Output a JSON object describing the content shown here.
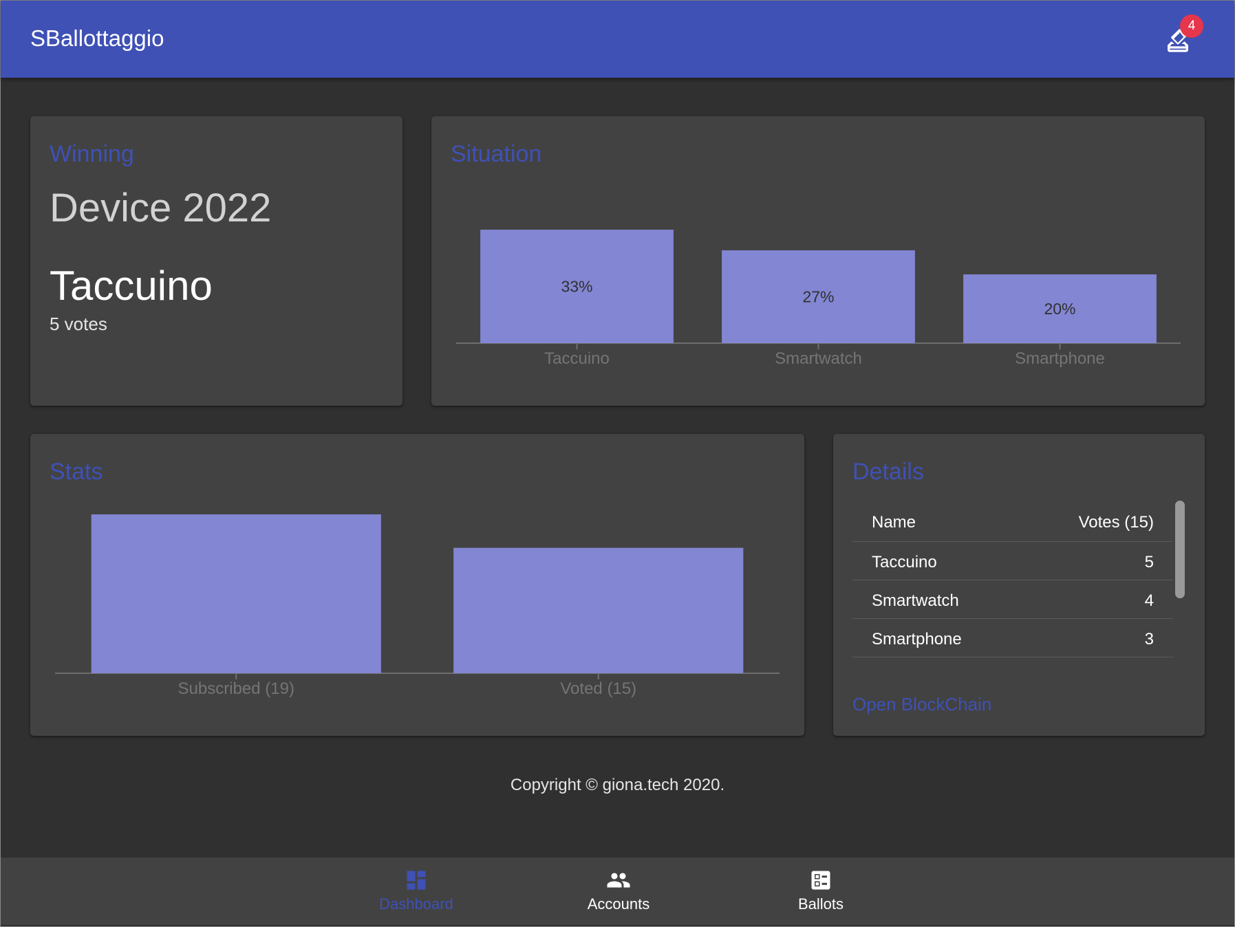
{
  "app": {
    "title": "SBallottaggio",
    "badge_count": "4",
    "accent_color": "#3f51b5",
    "badge_color": "#e5364c",
    "bar_color": "#8386d2",
    "vote_icon": "how-to-vote-icon"
  },
  "winning": {
    "title": "Winning",
    "ballot_name": "Device 2022",
    "winner": "Taccuino",
    "votes_text": "5 votes"
  },
  "situation": {
    "title": "Situation",
    "chart_data": {
      "type": "bar",
      "categories": [
        "Taccuino",
        "Smartwatch",
        "Smartphone"
      ],
      "values": [
        33,
        27,
        20
      ],
      "value_labels": [
        "33%",
        "27%",
        "20%"
      ],
      "unit": "%",
      "ylim": [
        0,
        60
      ],
      "grid": false,
      "legend": "none"
    }
  },
  "stats": {
    "title": "Stats",
    "chart_data": {
      "type": "bar",
      "categories": [
        "Subscribed (19)",
        "Voted (15)"
      ],
      "values": [
        19,
        15
      ],
      "ylim": [
        0,
        19
      ],
      "grid": false,
      "legend": "none"
    }
  },
  "details": {
    "title": "Details",
    "header": {
      "name": "Name",
      "votes": "Votes (15)"
    },
    "rows": [
      {
        "name": "Taccuino",
        "votes": "5"
      },
      {
        "name": "Smartwatch",
        "votes": "4"
      },
      {
        "name": "Smartphone",
        "votes": "3"
      }
    ],
    "link": "Open BlockChain"
  },
  "footer": {
    "text": "Copyright © giona.tech 2020."
  },
  "bottom_nav": {
    "items": [
      {
        "label": "Dashboard",
        "icon": "dashboard-icon",
        "active": true
      },
      {
        "label": "Accounts",
        "icon": "people-icon",
        "active": false
      },
      {
        "label": "Ballots",
        "icon": "ballot-icon",
        "active": false
      }
    ]
  }
}
